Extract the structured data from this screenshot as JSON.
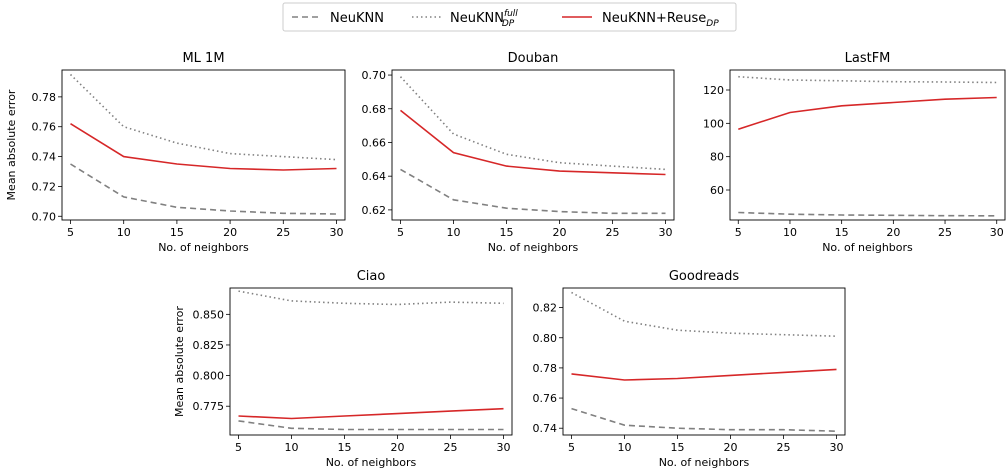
{
  "legend": {
    "items": [
      {
        "key": "neuknn",
        "label": "NeuKNN",
        "color": "#808080",
        "dash": "6,4"
      },
      {
        "key": "full",
        "label": "NeuKNN",
        "sup": "full",
        "sub": "DP",
        "color": "#808080",
        "dash": "1.5,3"
      },
      {
        "key": "reuse",
        "label": "NeuKNN+Reuse",
        "sub": "DP",
        "color": "#d62728",
        "dash": ""
      }
    ]
  },
  "chart_data": [
    {
      "type": "line",
      "title": "ML 1M",
      "xlabel": "No. of neighbors",
      "ylabel": "Mean absolute error",
      "x": [
        5,
        10,
        15,
        20,
        25,
        30
      ],
      "xticks": [
        "5",
        "10",
        "15",
        "20",
        "25",
        "30"
      ],
      "yticks": [
        "0.70",
        "0.72",
        "0.74",
        "0.76",
        "0.78"
      ],
      "ytick_values": [
        0.7,
        0.72,
        0.74,
        0.76,
        0.78
      ],
      "xlim": [
        4.2,
        30.8
      ],
      "ylim": [
        0.6975,
        0.798
      ],
      "series": [
        {
          "key": "neuknn",
          "values": [
            0.735,
            0.713,
            0.706,
            0.7035,
            0.702,
            0.7015
          ]
        },
        {
          "key": "full",
          "values": [
            0.795,
            0.76,
            0.749,
            0.742,
            0.74,
            0.738
          ]
        },
        {
          "key": "reuse",
          "values": [
            0.762,
            0.74,
            0.735,
            0.732,
            0.731,
            0.732
          ]
        }
      ]
    },
    {
      "type": "line",
      "title": "Douban",
      "xlabel": "No. of neighbors",
      "ylabel": "",
      "x": [
        5,
        10,
        15,
        20,
        25,
        30
      ],
      "xticks": [
        "5",
        "10",
        "15",
        "20",
        "25",
        "30"
      ],
      "yticks": [
        "0.62",
        "0.64",
        "0.66",
        "0.68",
        "0.70"
      ],
      "ytick_values": [
        0.62,
        0.64,
        0.66,
        0.68,
        0.7
      ],
      "xlim": [
        4.2,
        30.8
      ],
      "ylim": [
        0.614,
        0.703
      ],
      "series": [
        {
          "key": "neuknn",
          "values": [
            0.644,
            0.626,
            0.621,
            0.619,
            0.618,
            0.618
          ]
        },
        {
          "key": "full",
          "values": [
            0.699,
            0.665,
            0.653,
            0.648,
            0.646,
            0.644
          ]
        },
        {
          "key": "reuse",
          "values": [
            0.679,
            0.654,
            0.646,
            0.643,
            0.642,
            0.641
          ]
        }
      ]
    },
    {
      "type": "line",
      "title": "LastFM",
      "xlabel": "No. of neighbors",
      "ylabel": "",
      "x": [
        5,
        10,
        15,
        20,
        25,
        30
      ],
      "xticks": [
        "5",
        "10",
        "15",
        "20",
        "25",
        "30"
      ],
      "yticks": [
        "60",
        "80",
        "100",
        "120"
      ],
      "ytick_values": [
        60,
        80,
        100,
        120
      ],
      "xlim": [
        4.2,
        30.8
      ],
      "ylim": [
        42,
        132
      ],
      "series": [
        {
          "key": "neuknn",
          "values": [
            46.5,
            45.5,
            45.0,
            44.8,
            44.6,
            44.5
          ]
        },
        {
          "key": "full",
          "values": [
            128.0,
            126.0,
            125.5,
            125.0,
            124.8,
            124.5
          ]
        },
        {
          "key": "reuse",
          "values": [
            96.5,
            106.5,
            110.5,
            112.5,
            114.5,
            115.5
          ]
        }
      ]
    },
    {
      "type": "line",
      "title": "Ciao",
      "xlabel": "No. of neighbors",
      "ylabel": "Mean absolute error",
      "x": [
        5,
        10,
        15,
        20,
        25,
        30
      ],
      "xticks": [
        "5",
        "10",
        "15",
        "20",
        "25",
        "30"
      ],
      "yticks": [
        "0.775",
        "0.800",
        "0.825",
        "0.850"
      ],
      "ytick_values": [
        0.775,
        0.8,
        0.825,
        0.85
      ],
      "xlim": [
        4.2,
        30.8
      ],
      "ylim": [
        0.7515,
        0.8715
      ],
      "series": [
        {
          "key": "neuknn",
          "values": [
            0.763,
            0.757,
            0.756,
            0.756,
            0.756,
            0.756
          ]
        },
        {
          "key": "full",
          "values": [
            0.869,
            0.861,
            0.859,
            0.858,
            0.86,
            0.859
          ]
        },
        {
          "key": "reuse",
          "values": [
            0.767,
            0.765,
            0.767,
            0.769,
            0.771,
            0.773
          ]
        }
      ]
    },
    {
      "type": "line",
      "title": "Goodreads",
      "xlabel": "No. of neighbors",
      "ylabel": "",
      "x": [
        5,
        10,
        15,
        20,
        25,
        30
      ],
      "xticks": [
        "5",
        "10",
        "15",
        "20",
        "25",
        "30"
      ],
      "yticks": [
        "0.74",
        "0.76",
        "0.78",
        "0.80",
        "0.82"
      ],
      "ytick_values": [
        0.74,
        0.76,
        0.78,
        0.8,
        0.82
      ],
      "xlim": [
        4.2,
        30.8
      ],
      "ylim": [
        0.7355,
        0.833
      ],
      "series": [
        {
          "key": "neuknn",
          "values": [
            0.753,
            0.742,
            0.74,
            0.739,
            0.739,
            0.738
          ]
        },
        {
          "key": "full",
          "values": [
            0.83,
            0.811,
            0.805,
            0.803,
            0.802,
            0.801
          ]
        },
        {
          "key": "reuse",
          "values": [
            0.776,
            0.772,
            0.773,
            0.775,
            0.777,
            0.779
          ]
        }
      ]
    }
  ]
}
